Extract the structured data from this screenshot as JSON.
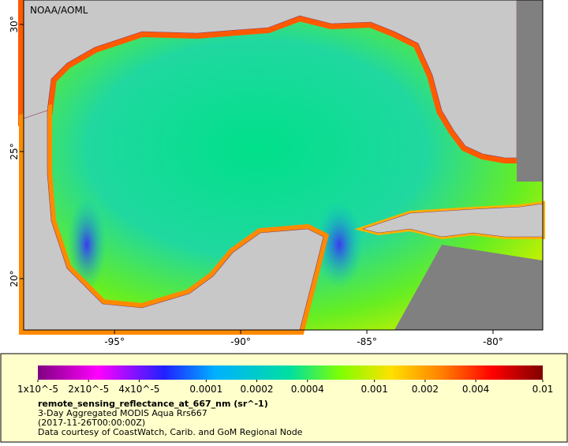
{
  "map": {
    "credit": "NOAA/AOML",
    "lonlim": [
      -98.6,
      -78.03
    ],
    "latlim": [
      17.98,
      30.96
    ],
    "lon_ticks": [
      {
        "value": -95,
        "label": "-95°"
      },
      {
        "value": -90,
        "label": "-90°"
      },
      {
        "value": -85,
        "label": "-85°"
      },
      {
        "value": -80,
        "label": "-80°"
      }
    ],
    "lat_ticks": [
      {
        "value": 30,
        "label": "30°"
      },
      {
        "value": 25,
        "label": "25°"
      },
      {
        "value": 20,
        "label": "20°"
      }
    ]
  },
  "legend": {
    "range": [
      1e-05,
      0.01
    ],
    "log": true,
    "ticks": [
      {
        "value": 1e-05,
        "label": "1x10^-5"
      },
      {
        "value": 2e-05,
        "label": "2x10^-5"
      },
      {
        "value": 4e-05,
        "label": "4x10^-5"
      },
      0.0001,
      0.0002,
      0.0004,
      0.001,
      0.002,
      0.004,
      0.01
    ],
    "title": "remote_sensing_reflectance_at_667_nm (sr^-1)",
    "lines": [
      "3-Day Aggregated MODIS Aqua Rrs667",
      "(2017-11-26T00:00:00Z)",
      "Data courtesy of CoastWatch, Carib. and GoM Regional Node"
    ]
  }
}
